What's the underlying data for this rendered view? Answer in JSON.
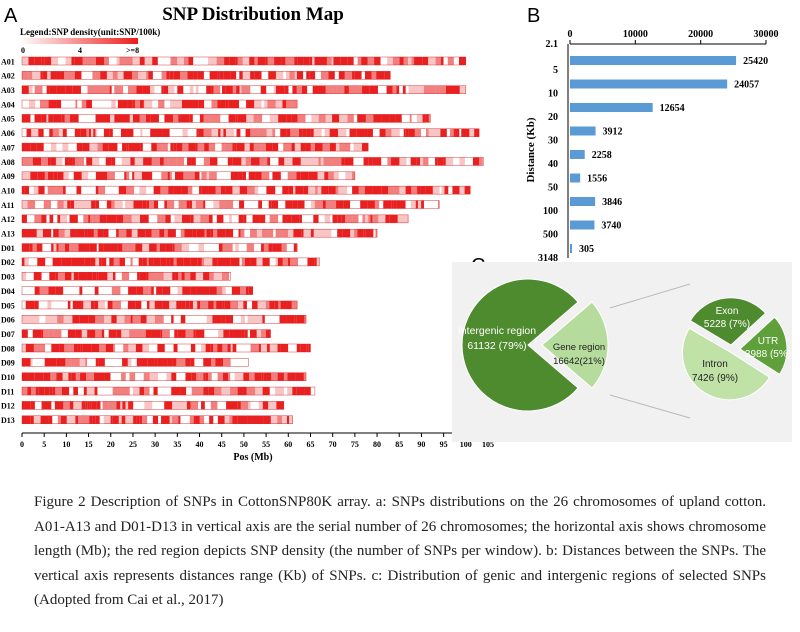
{
  "figure": {
    "panelA": {
      "letter": "A",
      "title": "SNP Distribution Map",
      "legend": {
        "title": "Legend:SNP density(unit:SNP/100k)",
        "min_label": "0",
        "mid_label": "4",
        "max_label": ">=8"
      },
      "xlabel": "Pos (Mb)",
      "xticks": [
        "0",
        "5",
        "10",
        "15",
        "20",
        "25",
        "30",
        "35",
        "40",
        "45",
        "50",
        "55",
        "60",
        "65",
        "70",
        "75",
        "80",
        "85",
        "90",
        "95",
        "100",
        "105"
      ],
      "xmax_mb": 105,
      "chromosomes": [
        {
          "name": "A01",
          "length": 100
        },
        {
          "name": "A02",
          "length": 83
        },
        {
          "name": "A03",
          "length": 100
        },
        {
          "name": "A04",
          "length": 62
        },
        {
          "name": "A05",
          "length": 92
        },
        {
          "name": "A06",
          "length": 103
        },
        {
          "name": "A07",
          "length": 78
        },
        {
          "name": "A08",
          "length": 104
        },
        {
          "name": "A09",
          "length": 75
        },
        {
          "name": "A10",
          "length": 101
        },
        {
          "name": "A11",
          "length": 94
        },
        {
          "name": "A12",
          "length": 87
        },
        {
          "name": "A13",
          "length": 80
        },
        {
          "name": "D01",
          "length": 62
        },
        {
          "name": "D02",
          "length": 67
        },
        {
          "name": "D03",
          "length": 47
        },
        {
          "name": "D04",
          "length": 52
        },
        {
          "name": "D05",
          "length": 62
        },
        {
          "name": "D06",
          "length": 64
        },
        {
          "name": "D07",
          "length": 56
        },
        {
          "name": "D08",
          "length": 65
        },
        {
          "name": "D09",
          "length": 51
        },
        {
          "name": "D10",
          "length": 64
        },
        {
          "name": "D11",
          "length": 66
        },
        {
          "name": "D12",
          "length": 59
        },
        {
          "name": "D13",
          "length": 61
        }
      ]
    },
    "panelB": {
      "letter": "B",
      "ylabel": "Distance (Kb)",
      "xticks": [
        "0",
        "10000",
        "20000",
        "30000"
      ],
      "xmax": 30000,
      "top_label": "2.1",
      "categories": [
        "5",
        "10",
        "20",
        "30",
        "40",
        "50",
        "100",
        "500",
        "3148"
      ],
      "values": [
        25420,
        24057,
        12654,
        3912,
        2258,
        1556,
        3846,
        3740,
        305
      ],
      "value_labels": [
        "25420",
        "24057",
        "12654",
        "3912",
        "2258",
        "1556",
        "3846",
        "3740",
        "305"
      ],
      "bar_color": "#5b9bd5"
    },
    "panelC": {
      "letter": "C",
      "left_pie": [
        {
          "name": "Intergenic region",
          "value_label": "61132 (79%)",
          "fraction": 0.79,
          "color": "#4e8a2e"
        },
        {
          "name": "Gene region",
          "value_label": "16642(21%)",
          "fraction": 0.21,
          "color": "#b5dc9c"
        }
      ],
      "right_pie": [
        {
          "name": "Exon",
          "value_label": "5228 (7%)",
          "fraction": 0.32,
          "color": "#4e8a2e"
        },
        {
          "name": "UTR",
          "value_label": "3988 (5%)",
          "fraction": 0.24,
          "color": "#5fa03a"
        },
        {
          "name": "Intron",
          "value_label": "7426 (9%)",
          "fraction": 0.44,
          "color": "#c1e2a7"
        }
      ]
    }
  },
  "caption": {
    "text": "Figure 2 Description of SNPs in CottonSNP80K array. a: SNPs distributions on the 26 chromosomes of upland cotton. A01-A13 and D01-D13 in vertical axis are the serial number of 26 chromosomes; the horizontal axis shows chromosome length (Mb); the red region depicts SNP density (the number of SNPs per window). b: Distances between the SNPs. The vertical axis represents distances range (Kb) of SNPs. c: Distribution of genic and intergenic regions of selected SNPs (Adopted from Cai et al., 2017)"
  },
  "chart_data": [
    {
      "type": "heatmap",
      "title": "SNP Distribution Map",
      "xlabel": "Pos (Mb)",
      "xlim": [
        0,
        105
      ],
      "legend": "Legend:SNP density(unit:SNP/100k)",
      "categories": [
        "A01",
        "A02",
        "A03",
        "A04",
        "A05",
        "A06",
        "A07",
        "A08",
        "A09",
        "A10",
        "A11",
        "A12",
        "A13",
        "D01",
        "D02",
        "D03",
        "D04",
        "D05",
        "D06",
        "D07",
        "D08",
        "D09",
        "D10",
        "D11",
        "D12",
        "D13"
      ]
    },
    {
      "type": "bar",
      "orientation": "horizontal",
      "ylabel": "Distance (Kb)",
      "categories": [
        "5",
        "10",
        "20",
        "30",
        "40",
        "50",
        "100",
        "500",
        "3148"
      ],
      "values": [
        25420,
        24057,
        12654,
        3912,
        2258,
        1556,
        3846,
        3740,
        305
      ],
      "xlim": [
        0,
        30000
      ]
    },
    {
      "type": "pie",
      "labels": [
        "Intergenic region",
        "Gene region"
      ],
      "values": [
        61132,
        16642
      ]
    },
    {
      "type": "pie",
      "labels": [
        "Exon",
        "UTR",
        "Intron"
      ],
      "values": [
        5228,
        3988,
        7426
      ]
    }
  ]
}
